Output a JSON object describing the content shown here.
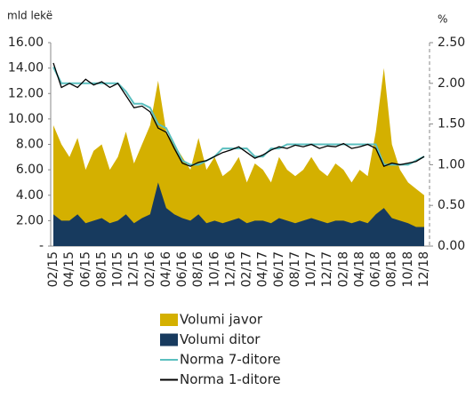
{
  "chart_data": {
    "type": "area-line",
    "ylabel": "mld lekë",
    "y2label": "%",
    "categories": [
      "02/15",
      null,
      "04/15",
      null,
      "06/15",
      null,
      "08/15",
      null,
      "10/15",
      null,
      "12/15",
      null,
      "02/16",
      null,
      "04/16",
      null,
      "06/16",
      null,
      "08/16",
      null,
      "10/16",
      null,
      "12/16",
      null,
      "02/17",
      null,
      "04/17",
      null,
      "06/17",
      null,
      "08/17",
      null,
      "10/17",
      null,
      "12/17",
      null,
      "02/18",
      null,
      "04/18",
      null,
      "06/18",
      null,
      "08/18",
      null,
      "10/18",
      null,
      "12/18"
    ],
    "series": [
      {
        "name": "Volumi javor",
        "color": "#d4b000",
        "kind": "area",
        "values": [
          9.5,
          8,
          7,
          8.5,
          6,
          7.5,
          8,
          6,
          7,
          9,
          6.5,
          8,
          9.5,
          13,
          9,
          8,
          7,
          6,
          8.5,
          6,
          7,
          5.5,
          6,
          7,
          5,
          6.5,
          6,
          5,
          7,
          6,
          5.5,
          6,
          7,
          6,
          5.5,
          6.5,
          6,
          5,
          6,
          5.5,
          9,
          14,
          8,
          6,
          5,
          4.5,
          4
        ]
      },
      {
        "name": "Volumi ditor",
        "color": "#173a5e",
        "kind": "area",
        "values": [
          2.5,
          2,
          2,
          2.5,
          1.8,
          2,
          2.2,
          1.8,
          2,
          2.5,
          1.8,
          2.2,
          2.5,
          5,
          3,
          2.5,
          2.2,
          2,
          2.5,
          1.8,
          2,
          1.8,
          2,
          2.2,
          1.8,
          2,
          2,
          1.8,
          2.2,
          2,
          1.8,
          2,
          2.2,
          2,
          1.8,
          2,
          2,
          1.8,
          2,
          1.8,
          2.5,
          3,
          2.2,
          2,
          1.8,
          1.5,
          1.5
        ]
      },
      {
        "name": "Norma 7-ditore",
        "color": "#5bbfbf",
        "kind": "line",
        "axis": "y2",
        "values": [
          2.2,
          2.0,
          2.0,
          2.0,
          2.0,
          2.0,
          2.0,
          2.0,
          2.0,
          1.9,
          1.75,
          1.75,
          1.7,
          1.5,
          1.45,
          1.25,
          1.05,
          1.0,
          1.0,
          1.05,
          1.1,
          1.2,
          1.2,
          1.2,
          1.2,
          1.1,
          1.1,
          1.2,
          1.2,
          1.25,
          1.25,
          1.25,
          1.25,
          1.25,
          1.25,
          1.25,
          1.25,
          1.25,
          1.25,
          1.25,
          1.25,
          1.0,
          1.0,
          1.0,
          1.0,
          1.05,
          1.1
        ]
      },
      {
        "name": "Norma 1-ditore",
        "color": "#000000",
        "kind": "line",
        "axis": "y2",
        "values": [
          2.25,
          1.95,
          2.0,
          1.95,
          2.05,
          1.98,
          2.02,
          1.95,
          2.0,
          1.85,
          1.7,
          1.72,
          1.65,
          1.45,
          1.4,
          1.2,
          1.02,
          0.98,
          1.03,
          1.05,
          1.1,
          1.15,
          1.18,
          1.22,
          1.15,
          1.08,
          1.12,
          1.18,
          1.22,
          1.2,
          1.24,
          1.22,
          1.25,
          1.2,
          1.23,
          1.22,
          1.26,
          1.2,
          1.22,
          1.25,
          1.2,
          0.98,
          1.02,
          1.0,
          1.02,
          1.04,
          1.1
        ]
      }
    ],
    "ylim": [
      0,
      16
    ],
    "yticks": [
      {
        "value": 0,
        "label": "-"
      },
      {
        "value": 2,
        "label": "2.00"
      },
      {
        "value": 4,
        "label": "4.00"
      },
      {
        "value": 6,
        "label": "6.00"
      },
      {
        "value": 8,
        "label": "8.00"
      },
      {
        "value": 10,
        "label": "10.00"
      },
      {
        "value": 12,
        "label": "12.00"
      },
      {
        "value": 14,
        "label": "14.00"
      },
      {
        "value": 16,
        "label": "16.00"
      }
    ],
    "y2lim": [
      0,
      2.5
    ],
    "y2ticks": [
      {
        "value": 0,
        "label": "0.00"
      },
      {
        "value": 0.5,
        "label": "0.50"
      },
      {
        "value": 1,
        "label": "1.00"
      },
      {
        "value": 1.5,
        "label": "1.50"
      },
      {
        "value": 2,
        "label": "2.00"
      },
      {
        "value": 2.5,
        "label": "2.50"
      }
    ]
  }
}
